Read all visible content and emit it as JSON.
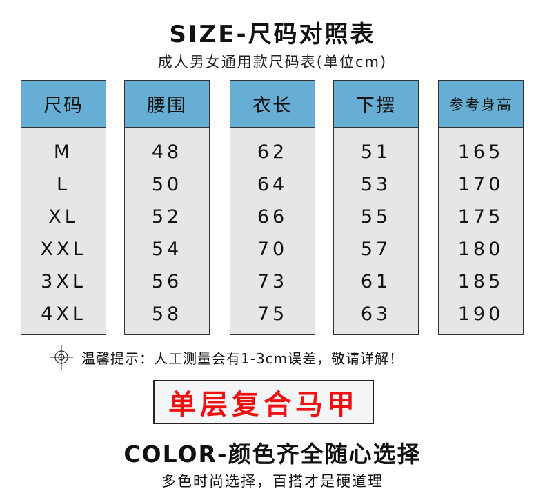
{
  "title": "SIZE-尺码对照表",
  "subtitle": "成人男女通用款尺码表(单位cm)",
  "columns": [
    {
      "header": "尺码",
      "values": [
        "M",
        "L",
        "XL",
        "XXL",
        "3XL",
        "4XL"
      ]
    },
    {
      "header": "腰围",
      "values": [
        "48",
        "50",
        "52",
        "54",
        "56",
        "58"
      ]
    },
    {
      "header": "衣长",
      "values": [
        "62",
        "64",
        "66",
        "70",
        "73",
        "75"
      ]
    },
    {
      "header": "下摆",
      "values": [
        "51",
        "53",
        "55",
        "57",
        "61",
        "63"
      ]
    },
    {
      "header": "参考身高",
      "values": [
        "165",
        "170",
        "175",
        "180",
        "185",
        "190"
      ]
    }
  ],
  "tip": "温馨提示：人工测量会有1-3cm误差，敬请详解！",
  "tip_icon": "crosshair-icon",
  "banner": "单层复合马甲",
  "color_title": "COLOR-颜色齐全随心选择",
  "color_subtitle": "多色时尚选择，百搭才是硬道理",
  "colors": {
    "header": "#66aed3",
    "body": "#e6e6e6",
    "banner_text": "#f01010"
  }
}
